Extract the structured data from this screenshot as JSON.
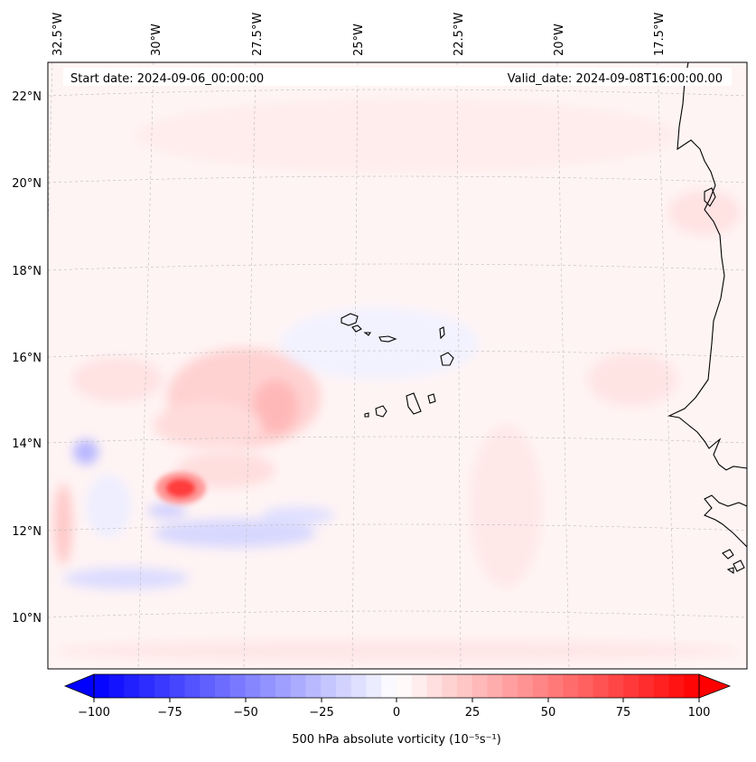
{
  "map": {
    "start_label": "Start date: 2024-09-06_00:00:00",
    "valid_label": "Valid_date: 2024-09-08T16:00:00.00",
    "lon_labels": [
      "32.5°W",
      "30°W",
      "27.5°W",
      "25°W",
      "22.5°W",
      "20°W",
      "17.5°W"
    ],
    "lat_labels": [
      "22°N",
      "20°N",
      "18°N",
      "16°N",
      "14°N",
      "12°N",
      "10°N"
    ],
    "colors": {
      "negative": "#0000ff",
      "positive": "#ff0000",
      "coast": "#000000",
      "grid": "#bbbbbb"
    }
  },
  "colorbar": {
    "ticks": [
      "−100",
      "−75",
      "−50",
      "−25",
      "0",
      "25",
      "50",
      "75",
      "100"
    ],
    "label": "500 hPa absolute vorticity (10⁻⁵s⁻¹)"
  }
}
